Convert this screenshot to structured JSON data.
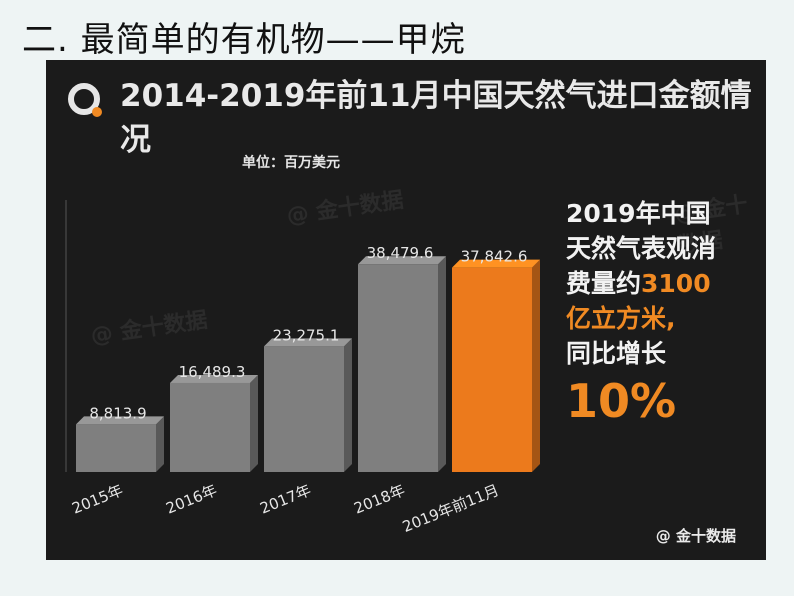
{
  "slide_heading": "二. 最简单的有机物——甲烷",
  "chart_data": {
    "type": "bar",
    "title": "2014-2019年前11月中国天然气进口金额情况",
    "unit": "单位：百万美元",
    "categories": [
      "2015年",
      "2016年",
      "2017年",
      "2018年",
      "2019年前11月"
    ],
    "values": [
      8813.9,
      16489.3,
      23275.1,
      38479.6,
      37842.6
    ],
    "value_labels": [
      "8,813.9",
      "16,489.3",
      "23,275.1",
      "38,479.6",
      "37,842.6"
    ],
    "bar_colors": [
      "#7f7f7f",
      "#7f7f7f",
      "#7f7f7f",
      "#7f7f7f",
      "#ec7a1c"
    ],
    "ylim": [
      0,
      40000
    ],
    "grid": false,
    "legend": "none"
  },
  "side_note": {
    "line1": "2019年中国",
    "line2": "天然气表观消",
    "line3_prefix": "费量约",
    "line3_value": "3100",
    "line4": "亿立方米,",
    "line5": "同比增长",
    "line6": "10%"
  },
  "watermark": "@ 金十数据",
  "source": "@ 金十数据",
  "colors": {
    "accent": "#f08a23",
    "panel": "#1b1b1b",
    "bar": "#7f7f7f"
  }
}
